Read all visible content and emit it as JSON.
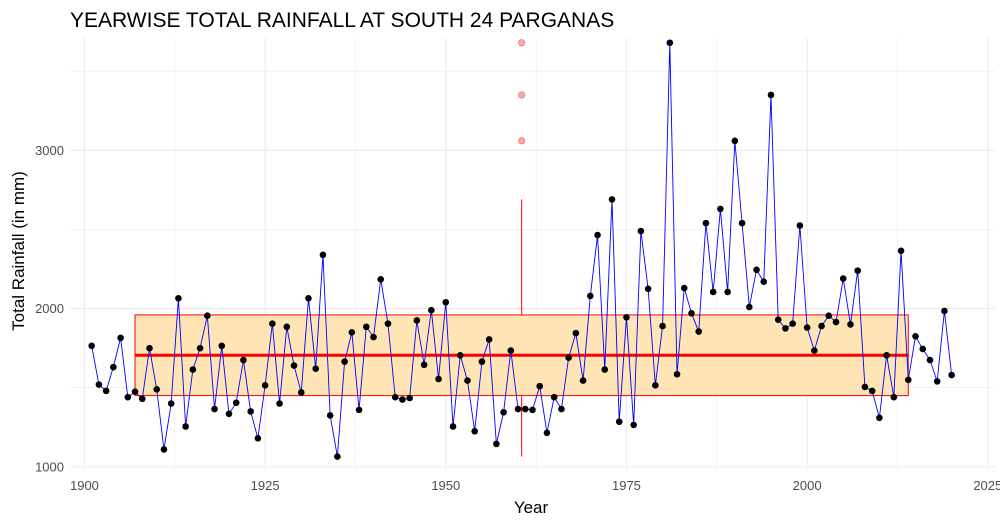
{
  "chart_data": {
    "type": "line",
    "title": "YEARWISE TOTAL RAINFALL AT SOUTH 24 PARGANAS",
    "xlabel": "Year",
    "ylabel": "Total Rainfall (in mm)",
    "xlim": [
      1898,
      2026
    ],
    "ylim": [
      980,
      3710
    ],
    "x_ticks": [
      1900,
      1925,
      1950,
      1975,
      2000,
      2025
    ],
    "y_ticks": [
      1000,
      2000,
      3000
    ],
    "grid": true,
    "legend": "none",
    "colors": {
      "line": "#0000ff",
      "points": "#000000",
      "box_fill": "#ffe4b5",
      "box_border": "#ff0000",
      "median": "#ff0000",
      "whisker": "#ff0000",
      "outliers": "#ff9999",
      "grid": "#ebebeb"
    },
    "series": [
      {
        "x": [
          1901,
          1902,
          1903,
          1904,
          1905,
          1906,
          1907,
          1908,
          1909,
          1910,
          1911,
          1912,
          1913,
          1914,
          1915,
          1916,
          1917,
          1918,
          1919,
          1920,
          1921,
          1922,
          1923,
          1924,
          1925,
          1926,
          1927,
          1928,
          1929,
          1930,
          1931,
          1932,
          1933,
          1934,
          1935,
          1936,
          1937,
          1938,
          1939,
          1940,
          1941,
          1942,
          1943,
          1944,
          1945,
          1946,
          1947,
          1948,
          1949,
          1950,
          1951,
          1952,
          1953,
          1954,
          1955,
          1956,
          1957,
          1958,
          1959,
          1960,
          1961,
          1962,
          1963,
          1964,
          1965,
          1966,
          1967,
          1968,
          1969,
          1970,
          1971,
          1972,
          1973,
          1974,
          1975,
          1976,
          1977,
          1978,
          1979,
          1980,
          1981,
          1982,
          1983,
          1984,
          1985,
          1986,
          1987,
          1988,
          1989,
          1990,
          1991,
          1992,
          1993,
          1994,
          1995,
          1996,
          1997,
          1998,
          1999,
          2000,
          2001,
          2002,
          2003,
          2004,
          2005,
          2006,
          2007,
          2008,
          2009,
          2010,
          2011,
          2012,
          2013,
          2014,
          2015,
          2016,
          2017,
          2018,
          2019,
          2020
        ],
        "y": [
          1765,
          1520,
          1480,
          1630,
          1815,
          1440,
          1475,
          1430,
          1750,
          1490,
          1110,
          1400,
          2065,
          1255,
          1615,
          1750,
          1955,
          1365,
          1765,
          1335,
          1405,
          1675,
          1350,
          1180,
          1515,
          1905,
          1400,
          1885,
          1640,
          1470,
          2065,
          1620,
          2340,
          1325,
          1065,
          1665,
          1850,
          1360,
          1885,
          1820,
          2185,
          1905,
          1440,
          1425,
          1435,
          1925,
          1645,
          1990,
          1555,
          2040,
          1255,
          1705,
          1545,
          1225,
          1665,
          1805,
          1145,
          1345,
          1735,
          1365,
          1365,
          1360,
          1510,
          1215,
          1440,
          1365,
          1690,
          1845,
          1545,
          2080,
          2465,
          1615,
          2690,
          1285,
          1945,
          1265,
          2490,
          2125,
          1515,
          1890,
          3680,
          1585,
          2130,
          1970,
          1855,
          2540,
          2105,
          2630,
          2105,
          3060,
          2540,
          2010,
          2245,
          2170,
          3350,
          1930,
          1875,
          1905,
          2525,
          1880,
          1735,
          1890,
          1955,
          1915,
          2190,
          1900,
          2240,
          1505,
          1480,
          1310,
          1705,
          1440,
          2365,
          1550,
          1825,
          1745,
          1675,
          1540,
          1985,
          1580
        ]
      }
    ],
    "boxplot": {
      "x_position": 1960.5,
      "x_span": [
        1907,
        2014
      ],
      "lower_whisker": 1065,
      "q1": 1450,
      "median": 1705,
      "q3": 1960,
      "upper_whisker": 2690,
      "outliers": [
        3060,
        3350,
        3680
      ]
    }
  }
}
